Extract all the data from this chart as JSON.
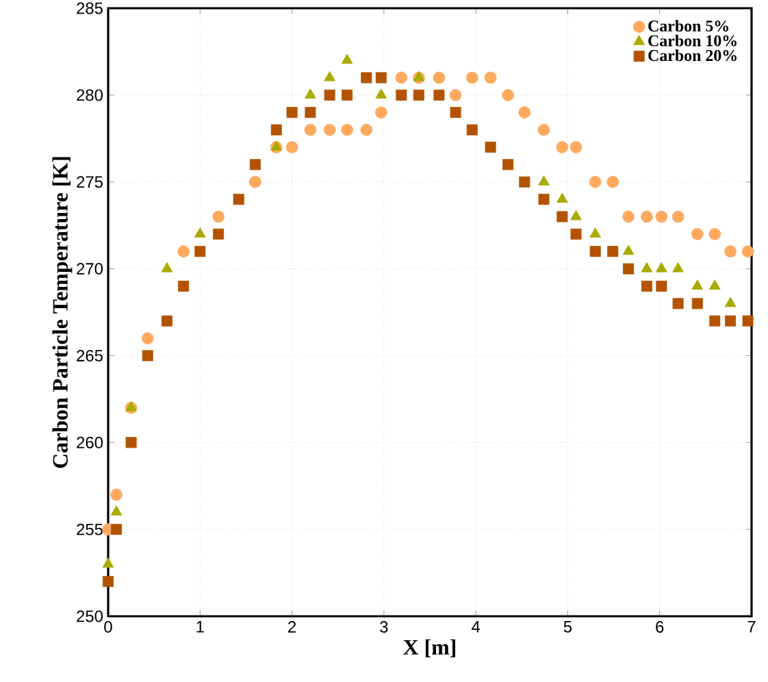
{
  "chart_data": {
    "type": "scatter",
    "xlabel": "X [m]",
    "ylabel": "Carbon Particle Temperature [K]",
    "x": [
      0,
      0.09,
      0.25,
      0.43,
      0.64,
      0.82,
      1.0,
      1.2,
      1.42,
      1.6,
      1.83,
      2.0,
      2.2,
      2.41,
      2.6,
      2.81,
      2.97,
      3.19,
      3.38,
      3.6,
      3.78,
      3.96,
      4.16,
      4.35,
      4.53,
      4.74,
      4.94,
      5.09,
      5.3,
      5.49,
      5.66,
      5.86,
      6.02,
      6.2,
      6.41,
      6.6,
      6.77,
      6.96
    ],
    "series": [
      {
        "name": "Carbon 5%",
        "color": "#ffa95f",
        "marker": "circle",
        "values": [
          255,
          257,
          262,
          266,
          null,
          271,
          null,
          273,
          null,
          275,
          277,
          277,
          278,
          278,
          278,
          278,
          279,
          281,
          281,
          281,
          280,
          281,
          281,
          280,
          279,
          278,
          277,
          277,
          275,
          275,
          273,
          273,
          273,
          273,
          272,
          272,
          271,
          271
        ]
      },
      {
        "name": "Carbon 10%",
        "color": "#aaaa00",
        "marker": "triangle",
        "values": [
          253,
          256,
          262,
          null,
          270,
          null,
          272,
          null,
          null,
          null,
          277,
          null,
          280,
          281,
          282,
          null,
          280,
          null,
          281,
          null,
          null,
          null,
          null,
          null,
          null,
          275,
          274,
          273,
          272,
          null,
          271,
          270,
          270,
          270,
          269,
          269,
          268,
          null
        ]
      },
      {
        "name": "Carbon 20%",
        "color": "#b35300",
        "marker": "square",
        "values": [
          252,
          255,
          260,
          265,
          267,
          269,
          271,
          272,
          274,
          276,
          278,
          279,
          279,
          280,
          280,
          281,
          281,
          280,
          280,
          280,
          279,
          278,
          277,
          276,
          275,
          274,
          273,
          272,
          271,
          271,
          270,
          269,
          269,
          268,
          268,
          267,
          267,
          267
        ]
      }
    ],
    "xlim": [
      0,
      7
    ],
    "ylim": [
      250,
      285
    ],
    "xticks": [
      0,
      1,
      2,
      3,
      4,
      5,
      6,
      7
    ],
    "yticks": [
      250,
      255,
      260,
      265,
      270,
      275,
      280,
      285
    ],
    "grid": true,
    "legend": "top right"
  }
}
